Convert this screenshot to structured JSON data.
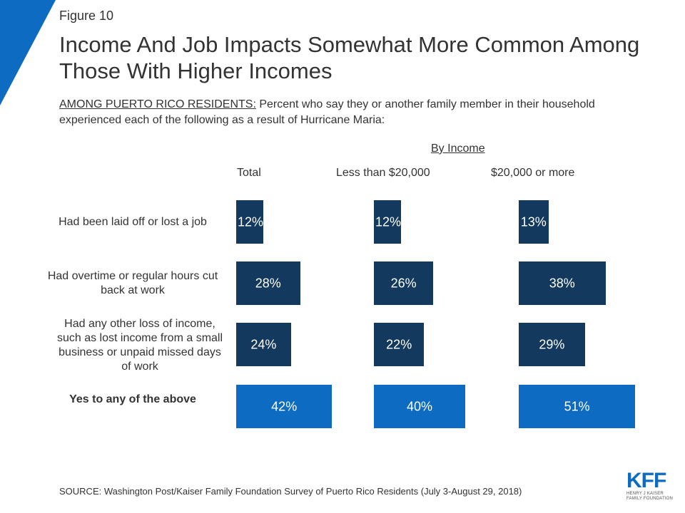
{
  "figure_label": "Figure 10",
  "title": "Income And Job Impacts Somewhat More Common Among Those With Higher Incomes",
  "subtitle": {
    "underlined": "AMONG PUERTO RICO RESIDENTS:",
    "rest": " Percent who say they or another family member in their household experienced each of the following as a result of Hurricane Maria:"
  },
  "source": "SOURCE: Washington Post/Kaiser Family Foundation Survey of Puerto Rico Residents (July 3-August 29, 2018)",
  "logo": {
    "main": "KFF",
    "line1": "HENRY J KAISER",
    "line2": "FAMILY FOUNDATION"
  },
  "colors": {
    "accent": "#0d6cc2",
    "dark_bar": "#133a5e",
    "highlight_bar": "#0d6cc2"
  },
  "chart_data": {
    "type": "bar",
    "orientation": "horizontal",
    "group_header": "By Income",
    "categories": [
      "Had been laid off or lost a job",
      "Had overtime or regular hours cut back at work",
      "Had any other loss of income, such as lost income from a small business or unpaid missed days of work",
      "Yes to any of the above"
    ],
    "series": [
      {
        "name": "Total",
        "values": [
          12,
          28,
          24,
          42
        ],
        "labels": [
          "12%",
          "28%",
          "24%",
          "42%"
        ]
      },
      {
        "name": "Less than $20,000",
        "values": [
          12,
          26,
          22,
          40
        ],
        "labels": [
          "12%",
          "26%",
          "22%",
          "40%"
        ]
      },
      {
        "name": "$20,000 or more",
        "values": [
          13,
          38,
          29,
          51
        ],
        "labels": [
          "13%",
          "38%",
          "29%",
          "51%"
        ]
      }
    ],
    "highlight_category": "Yes to any of the above"
  }
}
